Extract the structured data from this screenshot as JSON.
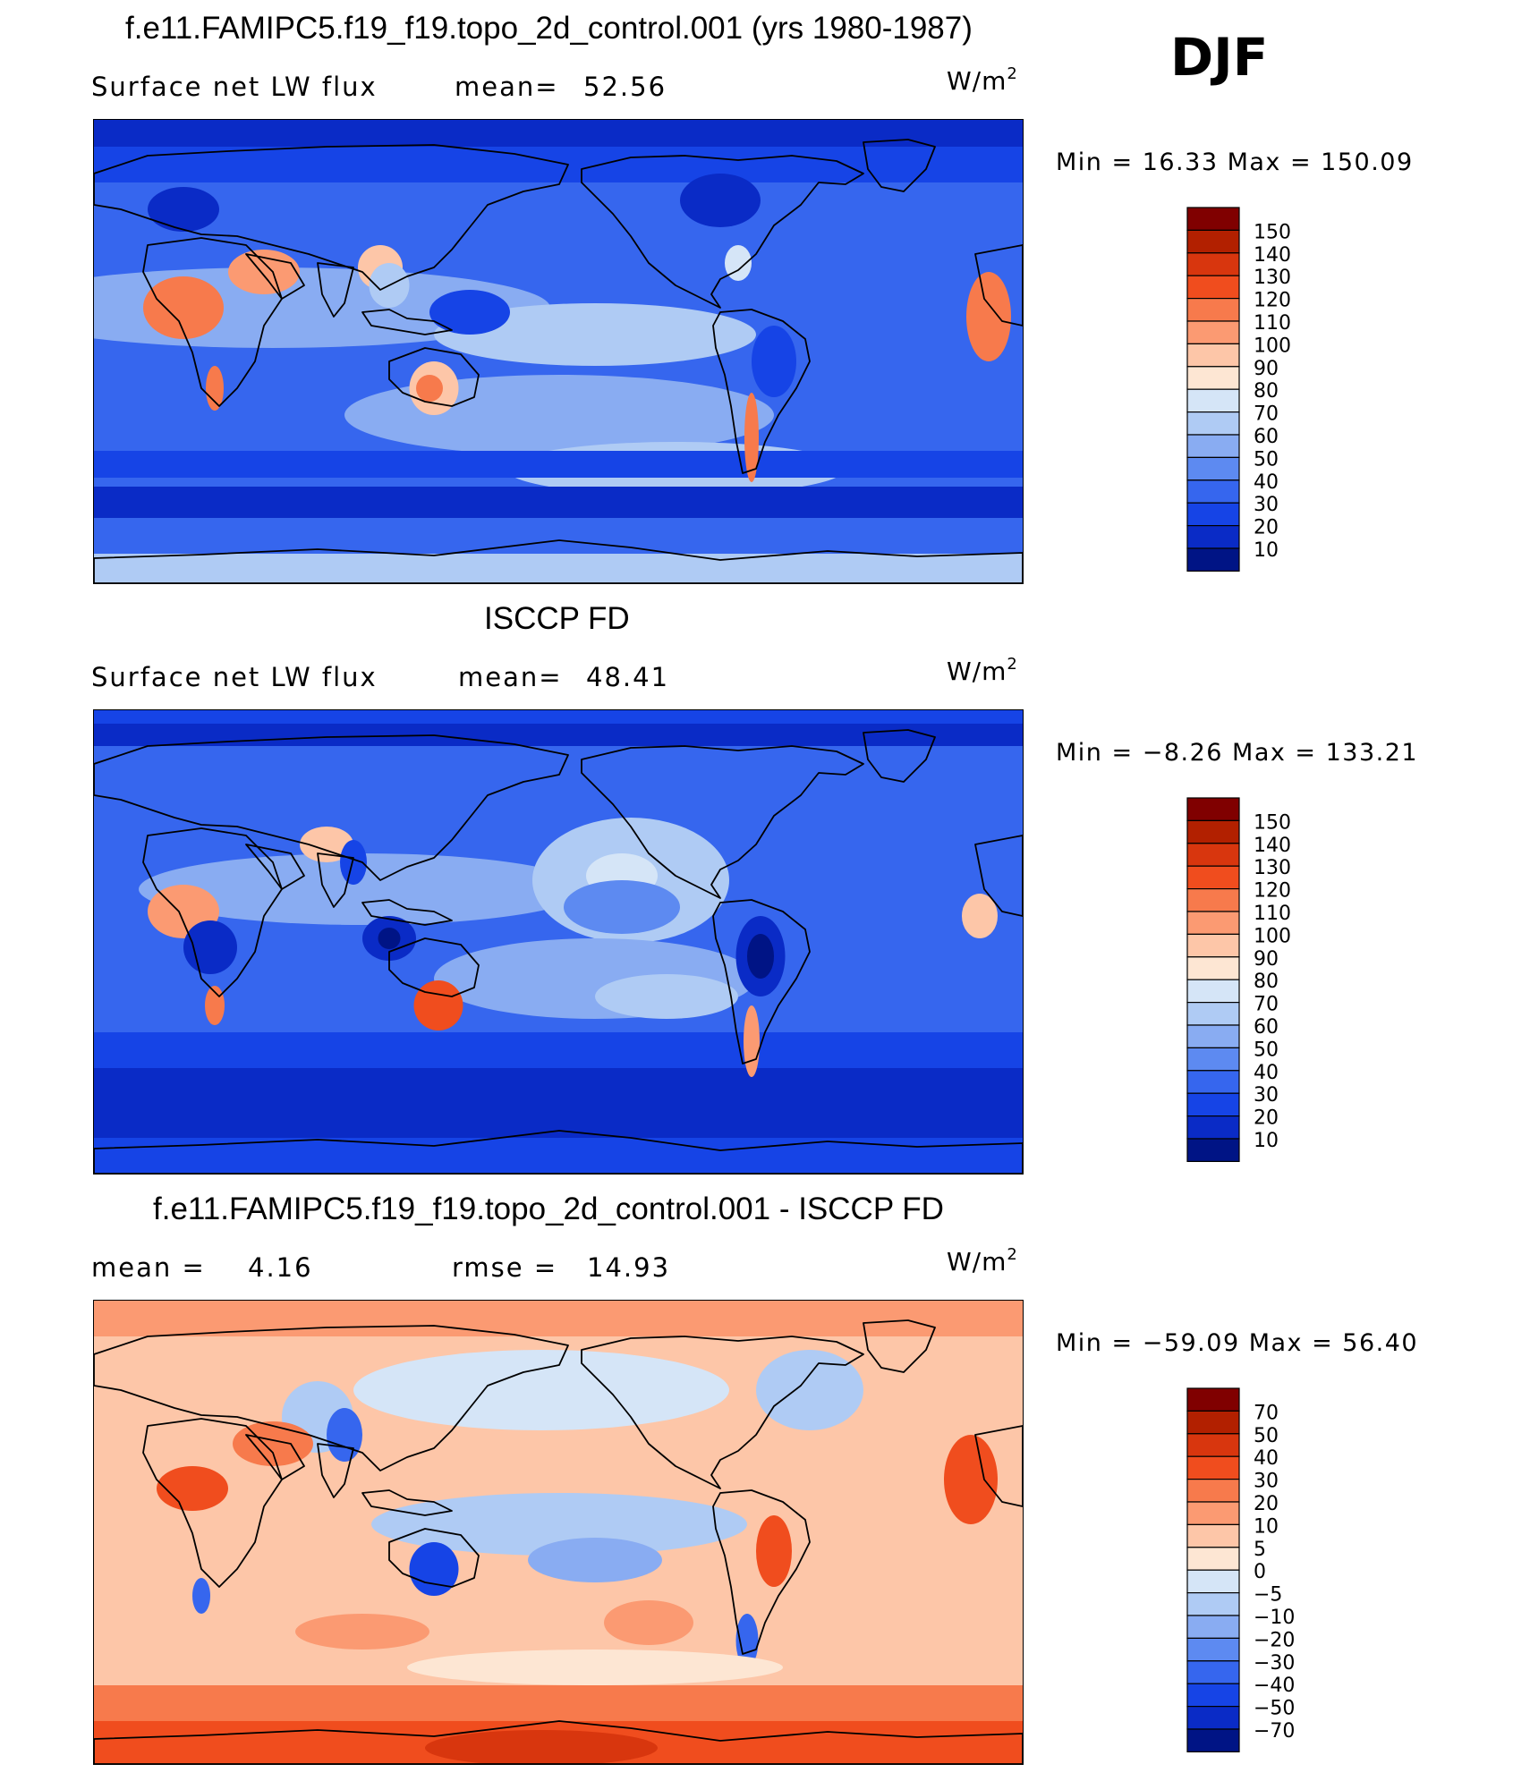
{
  "season": "DJF",
  "units_base": "W/m",
  "units_exp": "2",
  "panels": [
    {
      "title": "f.e11.FAMIPC5.f19_f19.topo_2d_control.001 (yrs 1980-1987)",
      "left_label": "Surface net LW flux",
      "right_label": "mean=",
      "right_value": "52.56",
      "minmax": "Min =  16.33 Max = 150.09",
      "colorbar_labels": [
        "150",
        "140",
        "130",
        "120",
        "110",
        "100",
        "90",
        "80",
        "70",
        "60",
        "50",
        "40",
        "30",
        "20",
        "10"
      ],
      "colorbar_colors": [
        "#800000",
        "#b22000",
        "#d8360e",
        "#f04d1e",
        "#f77a4c",
        "#fb9a72",
        "#fdc6a8",
        "#fde6d3",
        "#d5e5f7",
        "#afcbf4",
        "#89acf2",
        "#5d8af1",
        "#3666ee",
        "#1644e6",
        "#0a2bc6",
        "#001485"
      ]
    },
    {
      "title": "ISCCP FD",
      "left_label": "Surface net LW flux",
      "right_label": "mean=",
      "right_value": "48.41",
      "minmax": "Min =  −8.26 Max = 133.21",
      "colorbar_labels": [
        "150",
        "140",
        "130",
        "120",
        "110",
        "100",
        "90",
        "80",
        "70",
        "60",
        "50",
        "40",
        "30",
        "20",
        "10"
      ],
      "colorbar_colors": [
        "#800000",
        "#b22000",
        "#d8360e",
        "#f04d1e",
        "#f77a4c",
        "#fb9a72",
        "#fdc6a8",
        "#fde6d3",
        "#d5e5f7",
        "#afcbf4",
        "#89acf2",
        "#5d8af1",
        "#3666ee",
        "#1644e6",
        "#0a2bc6",
        "#001485"
      ]
    },
    {
      "title": "f.e11.FAMIPC5.f19_f19.topo_2d_control.001 - ISCCP FD",
      "left_label": "mean =",
      "left_value": "4.16",
      "right_label": "rmse =",
      "right_value": "14.93",
      "minmax": "Min = −59.09 Max =   56.40",
      "colorbar_labels": [
        "70",
        "50",
        "40",
        "30",
        "20",
        "10",
        "5",
        "0",
        "−5",
        "−10",
        "−20",
        "−30",
        "−40",
        "−50",
        "−70"
      ],
      "colorbar_colors": [
        "#800000",
        "#b22000",
        "#d8360e",
        "#f04d1e",
        "#f77a4c",
        "#fb9a72",
        "#fdc6a8",
        "#fde6d3",
        "#d5e5f7",
        "#afcbf4",
        "#89acf2",
        "#5d8af1",
        "#3666ee",
        "#1644e6",
        "#0a2bc6",
        "#001485"
      ]
    }
  ],
  "chart_data": [
    {
      "type": "heatmap",
      "title": "f.e11.FAMIPC5.f19_f19.topo_2d_control.001 (yrs 1980-1987)",
      "variable": "Surface net LW flux",
      "units": "W/m2",
      "season": "DJF",
      "mean": 52.56,
      "min": 16.33,
      "max": 150.09,
      "levels": [
        10,
        20,
        30,
        40,
        50,
        60,
        70,
        80,
        90,
        100,
        110,
        120,
        130,
        140,
        150
      ]
    },
    {
      "type": "heatmap",
      "title": "ISCCP FD",
      "variable": "Surface net LW flux",
      "units": "W/m2",
      "season": "DJF",
      "mean": 48.41,
      "min": -8.26,
      "max": 133.21,
      "levels": [
        10,
        20,
        30,
        40,
        50,
        60,
        70,
        80,
        90,
        100,
        110,
        120,
        130,
        140,
        150
      ]
    },
    {
      "type": "heatmap",
      "title": "f.e11.FAMIPC5.f19_f19.topo_2d_control.001 - ISCCP FD",
      "units": "W/m2",
      "season": "DJF",
      "mean": 4.16,
      "rmse": 14.93,
      "min": -59.09,
      "max": 56.4,
      "levels": [
        -70,
        -50,
        -40,
        -30,
        -20,
        -10,
        -5,
        0,
        5,
        10,
        20,
        30,
        40,
        50,
        70
      ]
    }
  ]
}
